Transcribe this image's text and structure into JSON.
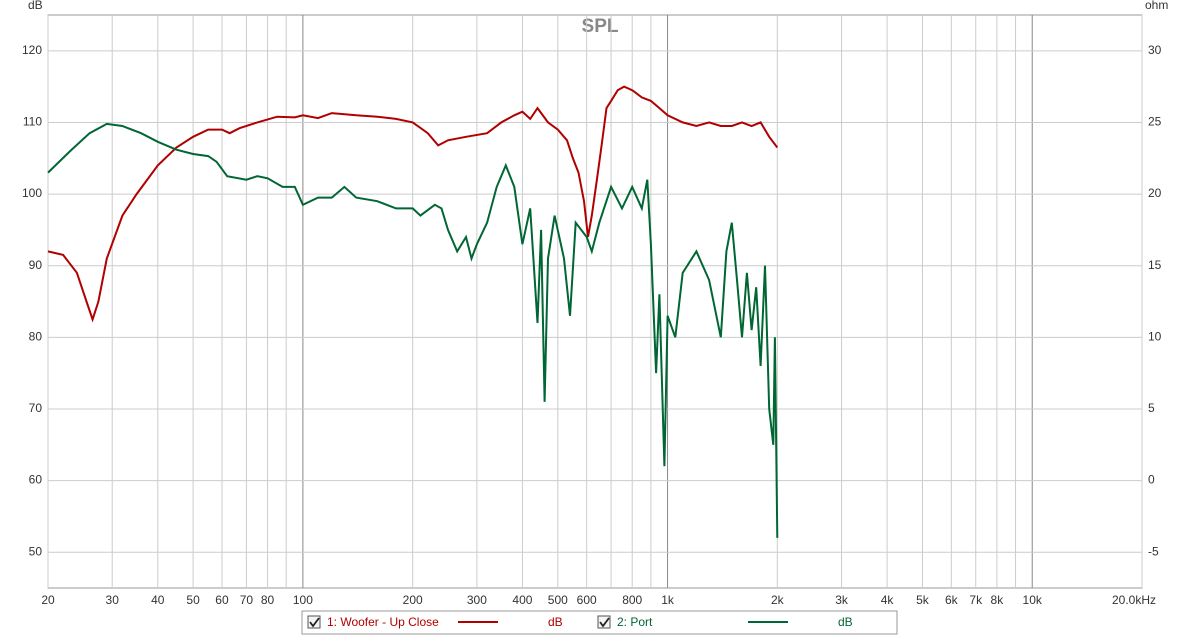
{
  "chart_data": {
    "type": "line",
    "title": "SPL",
    "y_label": "dB",
    "y2_label": "ohm",
    "log_x": true,
    "grid": true,
    "xlim": [
      20,
      20000
    ],
    "xticks": [
      20,
      30,
      40,
      50,
      60,
      70,
      80,
      100,
      200,
      300,
      400,
      500,
      600,
      800,
      {
        "value": 1000,
        "label": "1k"
      },
      {
        "value": 2000,
        "label": "2k"
      },
      {
        "value": 3000,
        "label": "3k"
      },
      {
        "value": 4000,
        "label": "4k"
      },
      {
        "value": 5000,
        "label": "5k"
      },
      {
        "value": 6000,
        "label": "6k"
      },
      {
        "value": 7000,
        "label": "7k"
      },
      {
        "value": 8000,
        "label": "8k"
      },
      {
        "value": 10000,
        "label": "10k"
      },
      {
        "value": 20000,
        "label": "20.0kHz"
      }
    ],
    "x_minor_ticks": [
      90,
      700,
      900,
      9000
    ],
    "ylim": [
      45,
      125
    ],
    "yticks": [
      50,
      60,
      70,
      80,
      90,
      100,
      110,
      120
    ],
    "y2lim": [
      -7.5,
      32.5
    ],
    "y2ticks": [
      -5,
      0,
      5,
      10,
      15,
      20,
      25,
      30
    ],
    "series": [
      {
        "name": "1: Woofer - Up Close",
        "unit": "dB",
        "color": "#b00000",
        "x": [
          20,
          22,
          24,
          25.5,
          26.5,
          27.5,
          29,
          32,
          35,
          40,
          45,
          50,
          55,
          60,
          63,
          67,
          75,
          85,
          95,
          100,
          110,
          120,
          140,
          160,
          180,
          200,
          220,
          235,
          250,
          280,
          320,
          350,
          380,
          400,
          420,
          440,
          470,
          500,
          530,
          550,
          570,
          590,
          605,
          620,
          640,
          660,
          680,
          700,
          730,
          760,
          800,
          850,
          900,
          950,
          1000,
          1100,
          1200,
          1300,
          1400,
          1500,
          1600,
          1700,
          1800,
          1900,
          2000
        ],
        "values": [
          92,
          91.5,
          89,
          85,
          82.5,
          85,
          91,
          97,
          100,
          104,
          106.5,
          108,
          109,
          109,
          108.5,
          109.2,
          110,
          110.8,
          110.7,
          111,
          110.6,
          111.3,
          111,
          110.8,
          110.5,
          110,
          108.5,
          106.8,
          107.5,
          108,
          108.5,
          110,
          111,
          111.5,
          110.5,
          112,
          110,
          109,
          107.5,
          105,
          103,
          99,
          94,
          97,
          102,
          107,
          112,
          113,
          114.5,
          115,
          114.5,
          113.5,
          113,
          112,
          111,
          110,
          109.5,
          110,
          109.5,
          109.5,
          110,
          109.5,
          110,
          108,
          106.5
        ]
      },
      {
        "name": "2: Port",
        "unit": "dB",
        "color": "#006633",
        "x": [
          20,
          23,
          26,
          29,
          32,
          36,
          40,
          45,
          50,
          55,
          58,
          62,
          70,
          75,
          80,
          88,
          95,
          100,
          110,
          120,
          130,
          140,
          160,
          180,
          200,
          210,
          230,
          240,
          250,
          265,
          280,
          290,
          300,
          320,
          340,
          360,
          380,
          400,
          420,
          440,
          450,
          460,
          470,
          490,
          520,
          540,
          560,
          600,
          620,
          650,
          700,
          750,
          800,
          850,
          880,
          900,
          930,
          950,
          980,
          1000,
          1050,
          1100,
          1200,
          1300,
          1400,
          1450,
          1500,
          1550,
          1600,
          1650,
          1700,
          1750,
          1800,
          1850,
          1900,
          1950,
          1970,
          2000
        ],
        "values": [
          103,
          106,
          108.5,
          109.8,
          109.5,
          108.5,
          107.3,
          106.2,
          105.6,
          105.3,
          104.5,
          102.5,
          102,
          102.5,
          102.2,
          101,
          101,
          98.5,
          99.5,
          99.5,
          101,
          99.5,
          99,
          98,
          98,
          97,
          98.5,
          98,
          95,
          92,
          94,
          91,
          93,
          96,
          101,
          104,
          101,
          93,
          98,
          82,
          95,
          71,
          91,
          97,
          91,
          83,
          96,
          94,
          92,
          96,
          101,
          98,
          101,
          98,
          102,
          93,
          75,
          86,
          62,
          83,
          80,
          89,
          92,
          88,
          80,
          92,
          96,
          88,
          80,
          89,
          81,
          87,
          76,
          90,
          70,
          65,
          80,
          52
        ]
      }
    ]
  }
}
